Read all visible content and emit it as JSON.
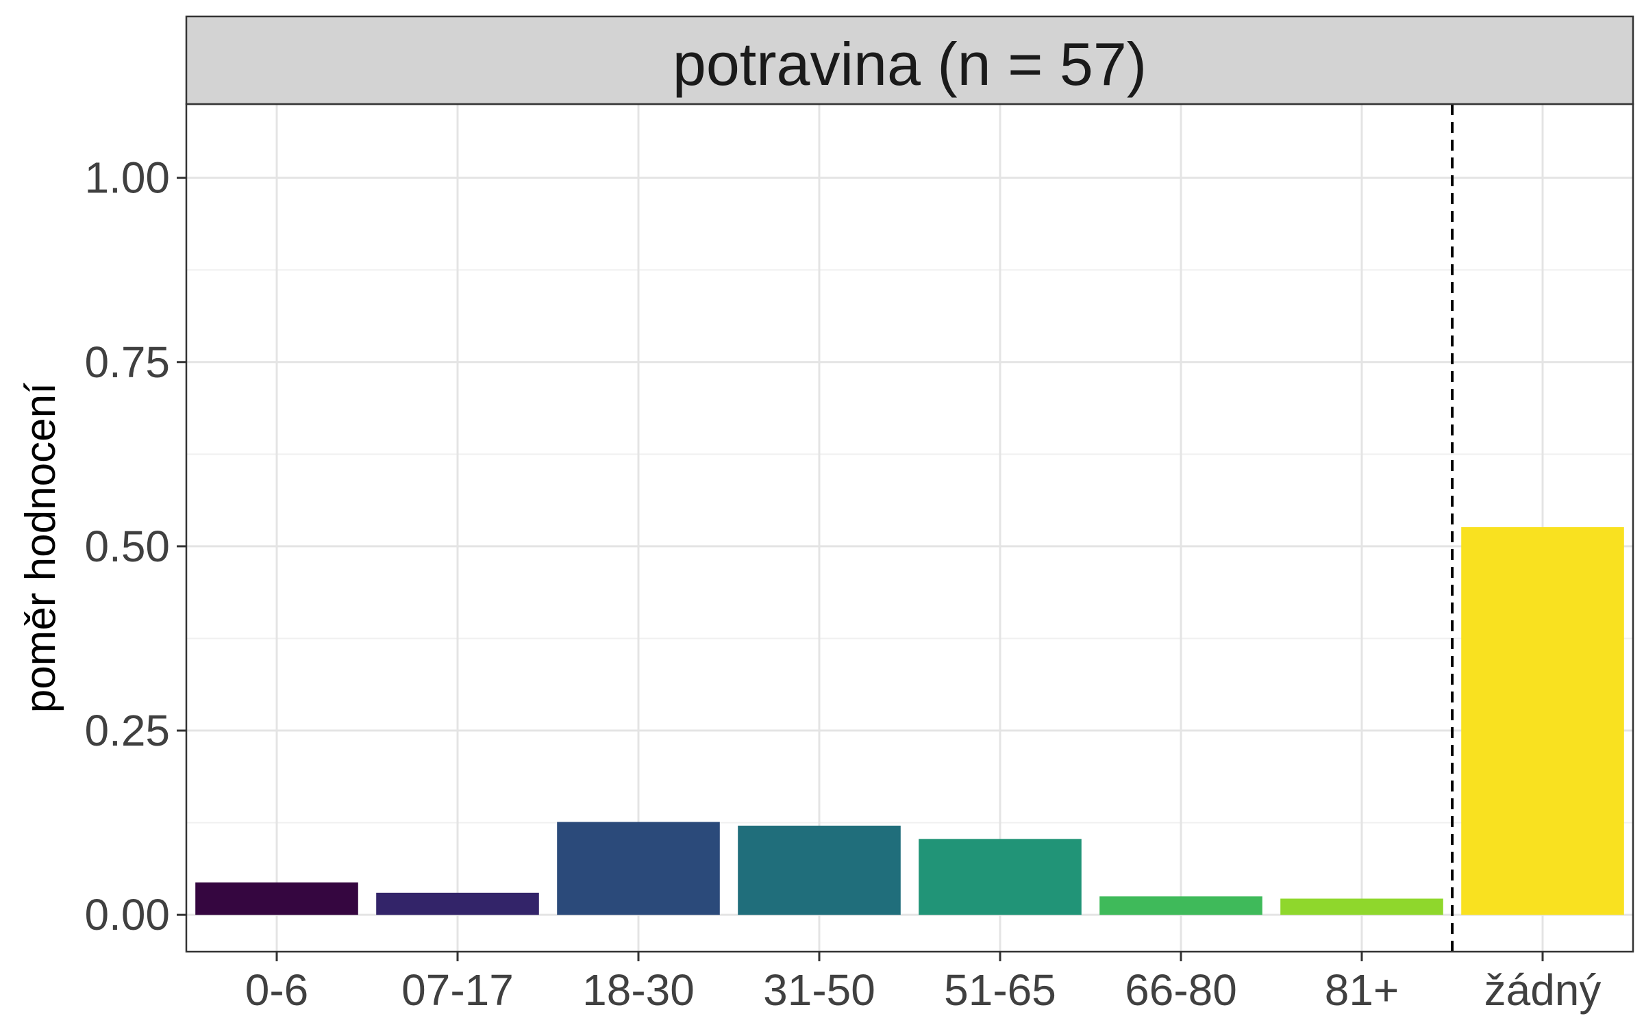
{
  "chart_data": {
    "type": "bar",
    "title": "potravina (n = 57)",
    "xlabel": "",
    "ylabel": "poměr hodnocení",
    "categories": [
      "0-6",
      "07-17",
      "18-30",
      "31-50",
      "51-65",
      "66-80",
      "81+",
      "žádný"
    ],
    "values": [
      0.044,
      0.03,
      0.126,
      0.121,
      0.103,
      0.025,
      0.022,
      0.526
    ],
    "colors": [
      "#350640",
      "#332469",
      "#2b4a7a",
      "#206e7b",
      "#219477",
      "#3fba5a",
      "#8fd72c",
      "#f9e120"
    ],
    "ylim": [
      -0.05,
      1.1
    ],
    "yticks": [
      0.0,
      0.25,
      0.5,
      0.75,
      1.0
    ],
    "ytick_labels": [
      "0.00",
      "0.25",
      "0.50",
      "0.75",
      "1.00"
    ],
    "grid": true,
    "reference_line": {
      "between": [
        "81+",
        "žádný"
      ],
      "style": "dashed"
    },
    "strip_color": "#d3d3d3"
  }
}
